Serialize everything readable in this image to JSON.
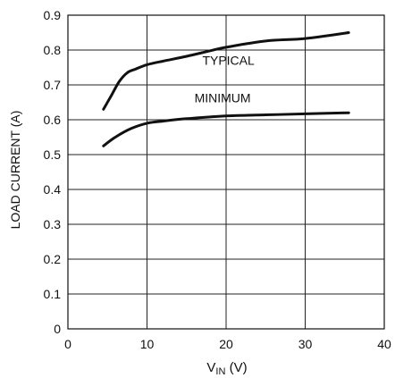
{
  "chart_data": {
    "type": "line",
    "title": "",
    "xlabel": "V",
    "xlabel_sub": "IN",
    "xlabel_unit": "(V)",
    "ylabel": "LOAD CURRENT (A)",
    "xlim": [
      0,
      40
    ],
    "ylim": [
      0,
      0.9
    ],
    "grid": true,
    "x_ticks": [
      0,
      10,
      20,
      30,
      40
    ],
    "y_ticks": [
      0,
      0.1,
      0.2,
      0.3,
      0.4,
      0.5,
      0.6,
      0.7,
      0.8,
      0.9
    ],
    "x_tick_labels": [
      "0",
      "10",
      "20",
      "30",
      "40"
    ],
    "y_tick_labels": [
      "0",
      "0.1",
      "0.2",
      "0.3",
      "0.4",
      "0.5",
      "0.6",
      "0.7",
      "0.8",
      "0.9"
    ],
    "series": [
      {
        "name": "TYPICAL",
        "x": [
          4.5,
          5.5,
          6.5,
          7.5,
          8.5,
          10,
          12,
          15,
          18,
          20,
          25,
          30,
          35.5
        ],
        "y": [
          0.63,
          0.67,
          0.71,
          0.735,
          0.745,
          0.758,
          0.768,
          0.782,
          0.798,
          0.808,
          0.826,
          0.833,
          0.85
        ]
      },
      {
        "name": "MINIMUM",
        "x": [
          4.5,
          6,
          8,
          10,
          12,
          15,
          20,
          25,
          30,
          35.5
        ],
        "y": [
          0.525,
          0.55,
          0.575,
          0.59,
          0.596,
          0.603,
          0.611,
          0.614,
          0.617,
          0.62
        ]
      }
    ],
    "annotations": [
      {
        "text": "TYPICAL",
        "x": 17,
        "y": 0.758
      },
      {
        "text": "MINIMUM",
        "x": 16,
        "y": 0.65
      }
    ]
  }
}
